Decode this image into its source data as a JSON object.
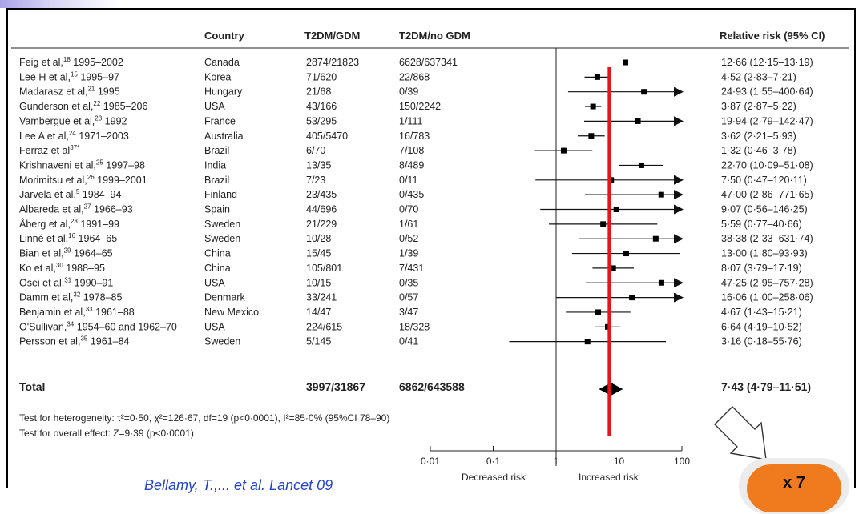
{
  "headers": {
    "country": "Country",
    "t2dm_gdm": "T2DM/GDM",
    "t2dm_no_gdm": "T2DM/no GDM",
    "rr": "Relative risk (95% CI)"
  },
  "footnotes": {
    "heterogeneity": "Test for heterogeneity: τ²=0·50, χ²=126·67, df=19 (p<0·0001), I²=85·0% (95%CI 78–90)",
    "overall": "Test for overall effect: Z=9·39 (p<0·0001)"
  },
  "axis": {
    "left_label": "Decreased risk",
    "right_label": "Increased risk"
  },
  "badge": "x 7",
  "bottom_text": "Bellamy, T.,... et al. Lancet 09",
  "colors": {
    "reference_line": "#e8141b",
    "badge": "#f07a1e",
    "marker": "#000000"
  },
  "chart_data": {
    "type": "forest",
    "x_scale": "log",
    "xlim": [
      0.01,
      100
    ],
    "x_ticks": [
      "0·01",
      "0·1",
      "1",
      "10",
      "100"
    ],
    "x_tick_values": [
      0.01,
      0.1,
      1,
      10,
      100
    ],
    "reference_value": 7,
    "studies": [
      {
        "study": "Feig et al,",
        "ref": "18",
        "years": "1995–2002",
        "country": "Canada",
        "gdm": "2874/21823",
        "nogdm": "6628/637341",
        "rr": 12.66,
        "lo": 12.15,
        "hi": 13.19,
        "label": "12·66 (12·15–13·19)"
      },
      {
        "study": "Lee H et al,",
        "ref": "15",
        "years": "1995–97",
        "country": "Korea",
        "gdm": "71/620",
        "nogdm": "22/868",
        "rr": 4.52,
        "lo": 2.83,
        "hi": 7.21,
        "label": "4·52 (2·83–7·21)"
      },
      {
        "study": "Madarasz et al,",
        "ref": "21",
        "years": "1995",
        "country": "Hungary",
        "gdm": "21/68",
        "nogdm": "0/39",
        "rr": 24.93,
        "lo": 1.55,
        "hi": 400.64,
        "label": "24·93 (1·55–400·64)"
      },
      {
        "study": "Gunderson et al,",
        "ref": "22",
        "years": "1985–206",
        "country": "USA",
        "gdm": "43/166",
        "nogdm": "150/2242",
        "rr": 3.87,
        "lo": 2.87,
        "hi": 5.22,
        "label": "3·87 (2·87–5·22)"
      },
      {
        "study": "Vambergue et al,",
        "ref": "23",
        "years": "1992",
        "country": "France",
        "gdm": "53/295",
        "nogdm": "1/111",
        "rr": 19.94,
        "lo": 2.79,
        "hi": 142.47,
        "label": "19·94 (2·79–142·47)"
      },
      {
        "study": "Lee A et al,",
        "ref": "24",
        "years": "1971–2003",
        "country": "Australia",
        "gdm": "405/5470",
        "nogdm": "16/783",
        "rr": 3.62,
        "lo": 2.21,
        "hi": 5.93,
        "label": "3·62 (2·21–5·93)"
      },
      {
        "study": "Ferraz et al",
        "ref": "37*",
        "years": "",
        "country": "Brazil",
        "gdm": "6/70",
        "nogdm": "7/108",
        "rr": 1.32,
        "lo": 0.46,
        "hi": 3.78,
        "label": "1·32 (0·46–3·78)"
      },
      {
        "study": "Krishnaveni et al,",
        "ref": "25",
        "years": "1997–98",
        "country": "India",
        "gdm": "13/35",
        "nogdm": "8/489",
        "rr": 22.7,
        "lo": 10.09,
        "hi": 51.08,
        "label": "22·70 (10·09–51·08)"
      },
      {
        "study": "Morimitsu et al,",
        "ref": "26",
        "years": "1999–2001",
        "country": "Brazil",
        "gdm": "7/23",
        "nogdm": "0/11",
        "rr": 7.5,
        "lo": 0.47,
        "hi": 120.11,
        "label": "7·50 (0·47–120·11)"
      },
      {
        "study": "Järvelä et al,",
        "ref": "5",
        "years": "1984–94",
        "country": "Finland",
        "gdm": "23/435",
        "nogdm": "0/435",
        "rr": 47.0,
        "lo": 2.86,
        "hi": 771.65,
        "label": "47·00 (2·86–771·65)"
      },
      {
        "study": "Albareda et al,",
        "ref": "27",
        "years": "1966–93",
        "country": "Spain",
        "gdm": "44/696",
        "nogdm": "0/70",
        "rr": 9.07,
        "lo": 0.56,
        "hi": 146.25,
        "label": "9·07 (0·56–146·25)"
      },
      {
        "study": "Åberg et al,",
        "ref": "28",
        "years": "1991–99",
        "country": "Sweden",
        "gdm": "21/229",
        "nogdm": "1/61",
        "rr": 5.59,
        "lo": 0.77,
        "hi": 40.66,
        "label": "5·59 (0·77–40·66)"
      },
      {
        "study": "Linné et al,",
        "ref": "16",
        "years": "1964–65",
        "country": "Sweden",
        "gdm": "10/28",
        "nogdm": "0/52",
        "rr": 38.38,
        "lo": 2.33,
        "hi": 631.74,
        "label": "38·38 (2·33–631·74)"
      },
      {
        "study": "Bian et al,",
        "ref": "29",
        "years": "1964–65",
        "country": "China",
        "gdm": "15/45",
        "nogdm": "1/39",
        "rr": 13.0,
        "lo": 1.8,
        "hi": 93.93,
        "label": "13·00 (1·80–93·93)"
      },
      {
        "study": "Ko et al,",
        "ref": "30",
        "years": "1988–95",
        "country": "China",
        "gdm": "105/801",
        "nogdm": "7/431",
        "rr": 8.07,
        "lo": 3.79,
        "hi": 17.19,
        "label": "8·07 (3·79–17·19)"
      },
      {
        "study": "Osei et al,",
        "ref": "31",
        "years": "1990–91",
        "country": "USA",
        "gdm": "10/15",
        "nogdm": "0/35",
        "rr": 47.25,
        "lo": 2.95,
        "hi": 757.28,
        "label": "47·25 (2·95–757·28)"
      },
      {
        "study": "Damm et al,",
        "ref": "32",
        "years": "1978–85",
        "country": "Denmark",
        "gdm": "33/241",
        "nogdm": "0/57",
        "rr": 16.06,
        "lo": 1.0,
        "hi": 258.06,
        "label": "16·06 (1·00–258·06)"
      },
      {
        "study": "Benjamin et al,",
        "ref": "33",
        "years": "1961–88",
        "country": "New Mexico",
        "gdm": "14/47",
        "nogdm": "3/47",
        "rr": 4.67,
        "lo": 1.43,
        "hi": 15.21,
        "label": "4·67 (1·43–15·21)"
      },
      {
        "study": "O'Sullivan,",
        "ref": "34",
        "years": "1954–60  and 1962–70",
        "country": "USA",
        "gdm": "224/615",
        "nogdm": "18/328",
        "rr": 6.64,
        "lo": 4.19,
        "hi": 10.52,
        "label": "6·64 (4·19–10·52)"
      },
      {
        "study": "Persson et al,",
        "ref": "35",
        "years": "1961–84",
        "country": "Sweden",
        "gdm": "5/145",
        "nogdm": "0/41",
        "rr": 3.16,
        "lo": 0.18,
        "hi": 55.76,
        "label": "3·16 (0·18–55·76)"
      }
    ],
    "total": {
      "label": "Total",
      "gdm": "3997/31867",
      "nogdm": "6862/643588",
      "rr": 7.43,
      "lo": 4.79,
      "hi": 11.51,
      "ci_label": "7·43 (4·79–11·51)"
    }
  }
}
